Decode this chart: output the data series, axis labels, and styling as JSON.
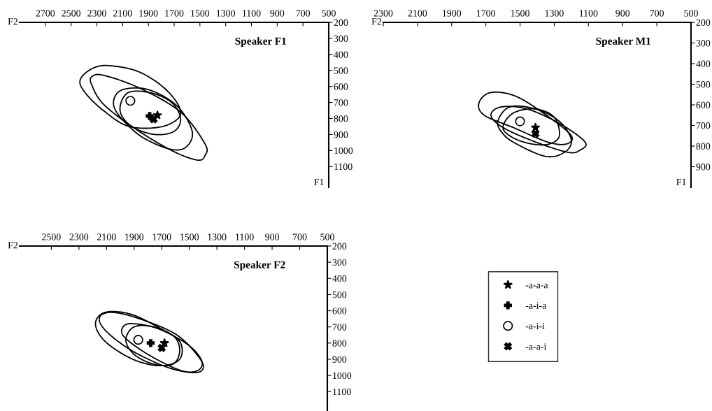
{
  "chart_data": [
    {
      "type": "scatter",
      "title": "Speaker F1",
      "xlabel": "F2",
      "ylabel": "F1",
      "xlim": [
        2900,
        500
      ],
      "ylim": [
        1230,
        200
      ],
      "xticks": [
        2700,
        2500,
        2300,
        2100,
        1900,
        1700,
        1500,
        1300,
        1100,
        900,
        700,
        500
      ],
      "yticks": [
        200,
        300,
        400,
        500,
        600,
        700,
        800,
        900,
        1000,
        1100
      ],
      "grid": false,
      "legend": false,
      "series": [
        {
          "marker": "star",
          "color": "#000000",
          "x": [
            1830
          ],
          "values": [
            780
          ]
        },
        {
          "marker": "plus",
          "color": "#000000",
          "x": [
            1890
          ],
          "values": [
            785
          ]
        },
        {
          "marker": "circle",
          "color": "#000000",
          "x": [
            2040
          ],
          "values": [
            690
          ]
        },
        {
          "marker": "cross",
          "color": "#000000",
          "x": [
            1860
          ],
          "values": [
            805
          ]
        }
      ]
    },
    {
      "type": "scatter",
      "title": "Speaker M1",
      "xlabel": "F2",
      "ylabel": "F1",
      "xlim": [
        2300,
        500
      ],
      "ylim": [
        1000,
        200
      ],
      "xticks": [
        2300,
        2100,
        1900,
        1700,
        1500,
        1300,
        1100,
        900,
        700,
        500
      ],
      "yticks": [
        200,
        300,
        400,
        500,
        600,
        700,
        800,
        900
      ],
      "grid": false,
      "legend": false,
      "series": [
        {
          "marker": "star",
          "color": "#000000",
          "x": [
            1410
          ],
          "values": [
            710
          ]
        },
        {
          "marker": "plus",
          "color": "#000000",
          "x": [
            null
          ],
          "values": [
            null
          ]
        },
        {
          "marker": "circle",
          "color": "#000000",
          "x": [
            1500
          ],
          "values": [
            680
          ]
        },
        {
          "marker": "cross",
          "color": "#000000",
          "x": [
            1410
          ],
          "values": [
            740
          ]
        }
      ]
    },
    {
      "type": "scatter",
      "title": "Speaker F2",
      "xlabel": "F2",
      "xlim": [
        2730,
        500
      ],
      "ylim": [
        1220,
        200
      ],
      "xticks": [
        2500,
        2300,
        2100,
        1900,
        1700,
        1500,
        1300,
        1100,
        900,
        700,
        500
      ],
      "yticks": [
        200,
        300,
        400,
        500,
        600,
        700,
        800,
        900,
        1000,
        1100
      ],
      "grid": false,
      "legend": "right",
      "series": [
        {
          "name": "-a-a-a",
          "marker": "star",
          "color": "#000000",
          "x": [
            1680
          ],
          "values": [
            800
          ]
        },
        {
          "name": "-a-i-a",
          "marker": "plus",
          "color": "#000000",
          "x": [
            1780
          ],
          "values": [
            800
          ]
        },
        {
          "name": "-a-i-i",
          "marker": "circle",
          "color": "#000000",
          "x": [
            1870
          ],
          "values": [
            780
          ]
        },
        {
          "name": "-a-a-i",
          "marker": "cross",
          "color": "#000000",
          "x": [
            1700
          ],
          "values": [
            830
          ]
        }
      ]
    }
  ]
}
